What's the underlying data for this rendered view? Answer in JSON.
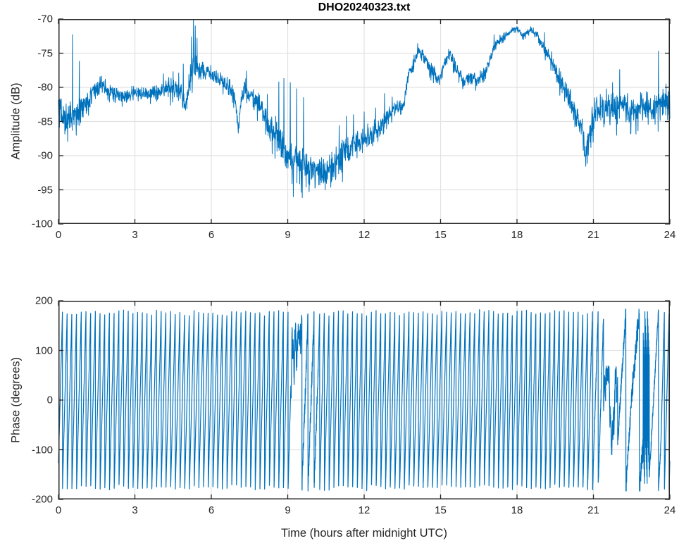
{
  "title": "DHO20240323.txt",
  "colors": {
    "line": "#0072BD",
    "axis": "#262626",
    "grid": "#E2E2E2",
    "background": "#FFFFFF",
    "tick_label": "#262626",
    "title": "#000000"
  },
  "chart_data": [
    {
      "type": "line",
      "title": "DHO20240323.txt",
      "xlabel": "",
      "ylabel": "Amplitude (dB)",
      "xlim": [
        0,
        24
      ],
      "ylim": [
        -100,
        -70
      ],
      "xticks": [
        0,
        3,
        6,
        9,
        12,
        15,
        18,
        21,
        24
      ],
      "yticks": [
        -100,
        -95,
        -90,
        -85,
        -80,
        -75,
        -70
      ],
      "grid": true,
      "legend": null,
      "series": [
        {
          "name": "amplitude",
          "units": "dB",
          "trend_t_db_noise": [
            [
              0.0,
              -84.2,
              2.2
            ],
            [
              0.4,
              -84.0,
              2.2
            ],
            [
              0.8,
              -83.6,
              2.0
            ],
            [
              1.1,
              -82.3,
              1.5
            ],
            [
              1.4,
              -80.6,
              1.2
            ],
            [
              1.65,
              -79.4,
              1.0
            ],
            [
              2.0,
              -80.4,
              1.0
            ],
            [
              2.4,
              -81.2,
              0.9
            ],
            [
              2.8,
              -81.0,
              0.9
            ],
            [
              3.2,
              -80.6,
              0.8
            ],
            [
              3.6,
              -80.9,
              0.8
            ],
            [
              4.0,
              -80.6,
              1.0
            ],
            [
              4.3,
              -80.3,
              1.2
            ],
            [
              4.6,
              -80.0,
              1.3
            ],
            [
              4.85,
              -80.8,
              1.2
            ],
            [
              5.0,
              -83.2,
              1.0
            ],
            [
              5.15,
              -79.0,
              1.5
            ],
            [
              5.3,
              -76.3,
              1.8
            ],
            [
              5.5,
              -77.4,
              1.0
            ],
            [
              5.8,
              -77.8,
              0.9
            ],
            [
              6.1,
              -78.2,
              0.9
            ],
            [
              6.4,
              -78.8,
              0.9
            ],
            [
              6.7,
              -80.0,
              1.0
            ],
            [
              6.95,
              -81.8,
              1.0
            ],
            [
              7.05,
              -86.3,
              0.8
            ],
            [
              7.2,
              -81.2,
              1.0
            ],
            [
              7.35,
              -79.9,
              1.0
            ],
            [
              7.6,
              -81.3,
              1.0
            ],
            [
              7.85,
              -82.6,
              1.3
            ],
            [
              8.1,
              -84.5,
              1.8
            ],
            [
              8.4,
              -86.5,
              2.2
            ],
            [
              8.7,
              -88.2,
              2.5
            ],
            [
              9.0,
              -90.0,
              2.5
            ],
            [
              9.3,
              -91.0,
              2.4
            ],
            [
              9.6,
              -91.4,
              2.2
            ],
            [
              9.9,
              -91.8,
              2.0
            ],
            [
              10.2,
              -92.1,
              2.0
            ],
            [
              10.5,
              -92.3,
              1.8
            ],
            [
              10.8,
              -91.0,
              1.8
            ],
            [
              11.1,
              -90.0,
              1.8
            ],
            [
              11.4,
              -88.8,
              1.5
            ],
            [
              11.8,
              -87.8,
              1.3
            ],
            [
              12.2,
              -87.0,
              1.3
            ],
            [
              12.6,
              -86.0,
              1.2
            ],
            [
              13.0,
              -84.0,
              1.1
            ],
            [
              13.35,
              -82.8,
              1.0
            ],
            [
              13.55,
              -82.7,
              0.9
            ],
            [
              13.7,
              -78.6,
              0.8
            ],
            [
              13.95,
              -76.4,
              0.8
            ],
            [
              14.15,
              -74.4,
              0.7
            ],
            [
              14.5,
              -76.6,
              0.8
            ],
            [
              14.75,
              -77.9,
              0.8
            ],
            [
              14.95,
              -79.2,
              0.8
            ],
            [
              15.15,
              -76.4,
              0.8
            ],
            [
              15.35,
              -74.9,
              0.7
            ],
            [
              15.6,
              -76.9,
              0.8
            ],
            [
              15.9,
              -79.2,
              0.8
            ],
            [
              16.15,
              -78.7,
              0.8
            ],
            [
              16.4,
              -78.9,
              0.8
            ],
            [
              16.65,
              -78.5,
              0.8
            ],
            [
              16.9,
              -76.2,
              0.7
            ],
            [
              17.2,
              -73.5,
              0.6
            ],
            [
              17.5,
              -72.6,
              0.5
            ],
            [
              17.8,
              -71.7,
              0.4
            ],
            [
              18.0,
              -71.4,
              0.4
            ],
            [
              18.25,
              -72.4,
              0.4
            ],
            [
              18.55,
              -71.6,
              0.4
            ],
            [
              18.8,
              -72.3,
              0.5
            ],
            [
              19.1,
              -74.7,
              0.7
            ],
            [
              19.4,
              -76.2,
              1.0
            ],
            [
              19.7,
              -79.0,
              1.3
            ],
            [
              20.0,
              -81.5,
              1.5
            ],
            [
              20.3,
              -84.0,
              1.5
            ],
            [
              20.55,
              -85.8,
              1.5
            ],
            [
              20.7,
              -90.3,
              1.2
            ],
            [
              20.9,
              -85.8,
              2.0
            ],
            [
              21.1,
              -83.3,
              1.8
            ],
            [
              21.4,
              -82.8,
              1.8
            ],
            [
              21.8,
              -83.2,
              1.8
            ],
            [
              22.2,
              -82.9,
              1.8
            ],
            [
              22.6,
              -83.3,
              1.8
            ],
            [
              23.0,
              -82.9,
              1.8
            ],
            [
              23.4,
              -83.1,
              1.8
            ],
            [
              23.7,
              -82.6,
              1.7
            ],
            [
              24.0,
              -82.6,
              1.7
            ]
          ],
          "spikes_t_db": [
            [
              0.55,
              -72.3
            ],
            [
              0.82,
              -76.2
            ],
            [
              4.12,
              -78.0
            ],
            [
              4.5,
              -77.7
            ],
            [
              4.72,
              -77.9
            ],
            [
              4.9,
              -76.6
            ],
            [
              5.22,
              -72.6
            ],
            [
              5.3,
              -70.2
            ],
            [
              5.37,
              -71.0
            ],
            [
              5.44,
              -72.8
            ],
            [
              7.38,
              -77.6
            ],
            [
              8.2,
              -81.0
            ],
            [
              8.65,
              -79.2
            ],
            [
              8.85,
              -78.7
            ],
            [
              9.1,
              -79.3
            ],
            [
              9.35,
              -80.2
            ],
            [
              9.62,
              -81.5
            ],
            [
              9.72,
              -94.6
            ],
            [
              10.08,
              -94.6
            ],
            [
              10.47,
              -95.0
            ],
            [
              11.02,
              -85.6
            ],
            [
              11.15,
              -93.8
            ],
            [
              11.3,
              -84.2
            ],
            [
              11.58,
              -84.0
            ],
            [
              12.0,
              -83.6
            ],
            [
              12.45,
              -83.0
            ],
            [
              12.8,
              -80.9
            ],
            [
              13.1,
              -81.4
            ],
            [
              14.1,
              -73.6
            ],
            [
              17.1,
              -72.3
            ],
            [
              19.08,
              -72.0
            ],
            [
              21.75,
              -79.3
            ],
            [
              22.03,
              -77.4
            ],
            [
              23.55,
              -74.7
            ],
            [
              23.85,
              -79.5
            ]
          ]
        }
      ]
    },
    {
      "type": "line",
      "title": "",
      "xlabel": "Time (hours after midnight UTC)",
      "ylabel": "Phase (degrees)",
      "xlim": [
        0,
        24
      ],
      "ylim": [
        -200,
        200
      ],
      "xticks": [
        0,
        3,
        6,
        9,
        12,
        15,
        18,
        21,
        24
      ],
      "yticks": [
        -200,
        -100,
        0,
        100,
        200
      ],
      "grid": true,
      "legend": null,
      "series": [
        {
          "name": "phase",
          "units": "degrees",
          "wrap_range": [
            -180,
            180
          ],
          "cycles_per_hour_typical": 5.42,
          "segments": [
            {
              "t0": 0.0,
              "t1": 9.12,
              "mode": "saw",
              "cycles_per_hour": 5.42,
              "peak": 180,
              "trough": -180,
              "jitter_deg": 3
            },
            {
              "t0": 9.12,
              "t1": 9.5,
              "mode": "noise",
              "hi": 155,
              "lo": -45
            },
            {
              "t0": 9.5,
              "t1": 10.2,
              "mode": "saw",
              "cycles_per_hour": 4.2,
              "peak": 172,
              "trough": -178,
              "jitter_deg": 18
            },
            {
              "t0": 10.2,
              "t1": 20.9,
              "mode": "saw",
              "cycles_per_hour": 5.42,
              "peak": 180,
              "trough": -180,
              "jitter_deg": 3
            },
            {
              "t0": 20.9,
              "t1": 21.4,
              "mode": "saw",
              "cycles_per_hour": 4.6,
              "peak": 180,
              "trough": -180,
              "jitter_deg": 10
            },
            {
              "t0": 21.4,
              "t1": 21.95,
              "mode": "noise",
              "hi": 70,
              "lo": -130
            },
            {
              "t0": 21.95,
              "t1": 22.5,
              "mode": "saw",
              "cycles_per_hour": 2.3,
              "peak": 180,
              "trough": -180,
              "jitter_deg": 15
            },
            {
              "t0": 22.5,
              "t1": 22.95,
              "mode": "saw",
              "cycles_per_hour": 1.6,
              "peak": 180,
              "trough": -180,
              "jitter_deg": 25
            },
            {
              "t0": 22.95,
              "t1": 23.2,
              "mode": "saw",
              "cycles_per_hour": 80,
              "peak": 180,
              "trough": -180,
              "jitter_deg": 0
            },
            {
              "t0": 23.2,
              "t1": 23.65,
              "mode": "saw",
              "cycles_per_hour": 2.6,
              "peak": 180,
              "trough": -180,
              "jitter_deg": 8
            },
            {
              "t0": 23.65,
              "t1": 24.0,
              "mode": "saw",
              "cycles_per_hour": 5.42,
              "peak": 180,
              "trough": -180,
              "jitter_deg": 3
            }
          ]
        }
      ]
    }
  ]
}
